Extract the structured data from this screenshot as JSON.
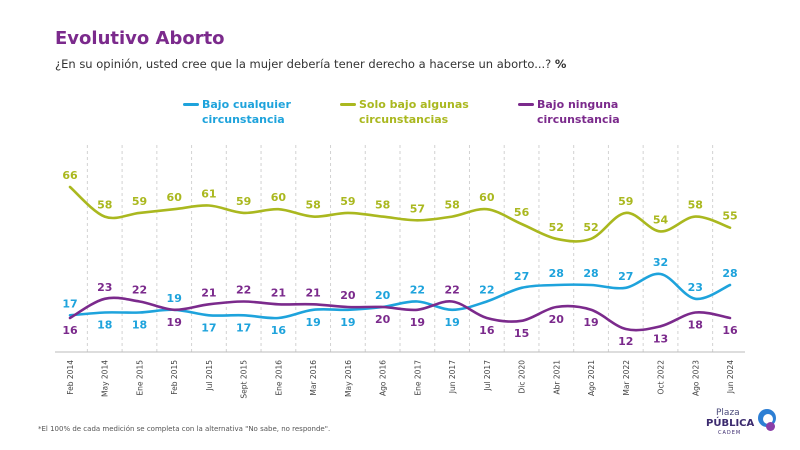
{
  "header": {
    "title": "Evolutivo Aborto",
    "subtitle": "¿En su opinión, usted cree que la mujer debería tener derecho a hacerse un aborto...?",
    "subtitle_unit": "%"
  },
  "legend": [
    {
      "label_line1": "Bajo cualquier",
      "label_line2": "circunstancia",
      "color": "#1ea3dc"
    },
    {
      "label_line1": "Solo bajo algunas",
      "label_line2": "circunstancias",
      "color": "#aab81f"
    },
    {
      "label_line1": "Bajo ninguna",
      "label_line2": "circunstancia",
      "color": "#7b2a8c"
    }
  ],
  "footnote": "*El 100% de cada medición se completa con la alternativa \"No sabe, no responde\".",
  "logo": {
    "line1": "Plaza",
    "line2": "PÚBLICA",
    "line3": "CADEM"
  },
  "chart_data": {
    "type": "line",
    "categories": [
      "Feb 2014",
      "May 2014",
      "Ene 2015",
      "Feb 2015",
      "Jul 2015",
      "Sept 2015",
      "Ene 2016",
      "Mar 2016",
      "May 2016",
      "Ago 2016",
      "Ene 2017",
      "Jun 2017",
      "Jul 2017",
      "Dic 2020",
      "Abr 2021",
      "Ago 2021",
      "Mar 2022",
      "Oct 2022",
      "Ago 2023",
      "Jun 2024"
    ],
    "series": [
      {
        "name": "Bajo cualquier circunstancia",
        "color": "#1ea3dc",
        "values": [
          17,
          18,
          18,
          19,
          17,
          17,
          16,
          19,
          19,
          20,
          22,
          19,
          22,
          27,
          28,
          28,
          27,
          32,
          23,
          28
        ]
      },
      {
        "name": "Solo bajo algunas circunstancias",
        "color": "#aab81f",
        "values": [
          66,
          58,
          59,
          60,
          61,
          59,
          60,
          58,
          59,
          58,
          57,
          58,
          60,
          56,
          52,
          52,
          59,
          54,
          58,
          55
        ]
      },
      {
        "name": "Bajo ninguna circunstancia",
        "color": "#7b2a8c",
        "values": [
          16,
          23,
          22,
          19,
          21,
          22,
          21,
          21,
          20,
          20,
          19,
          22,
          16,
          15,
          20,
          19,
          12,
          13,
          18,
          16
        ]
      }
    ],
    "grid_dividers": "vertical dashed",
    "legend_position": "top"
  }
}
